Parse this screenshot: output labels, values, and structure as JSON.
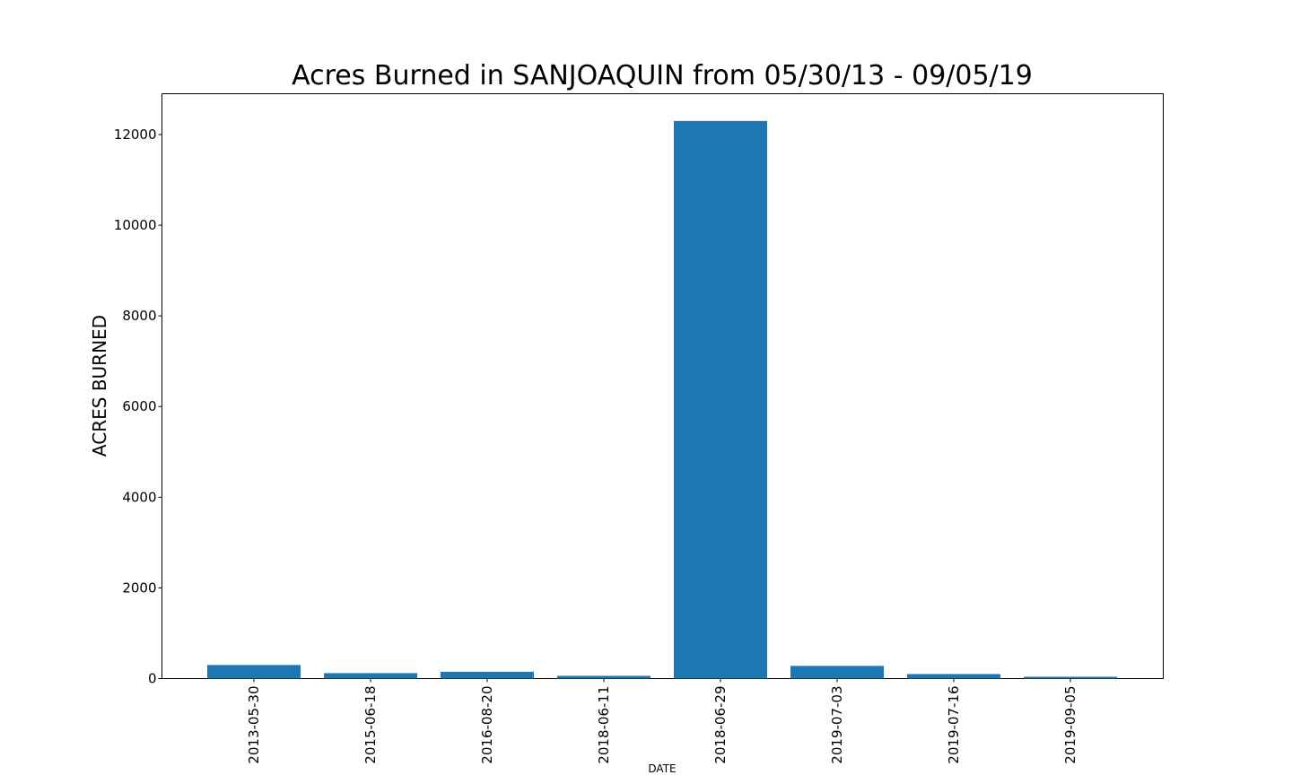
{
  "chart_data": {
    "type": "bar",
    "title": "Acres Burned in SANJOAQUIN from 05/30/13 - 09/05/19",
    "xlabel": "DATE",
    "ylabel": "ACRES BURNED",
    "categories": [
      "2013-05-30",
      "2015-06-18",
      "2016-08-20",
      "2018-06-11",
      "2018-06-29",
      "2019-07-03",
      "2019-07-16",
      "2019-09-05"
    ],
    "values": [
      300,
      120,
      150,
      60,
      12300,
      280,
      100,
      40
    ],
    "ylim": [
      0,
      12900
    ],
    "yticks": [
      0,
      2000,
      4000,
      6000,
      8000,
      10000,
      12000
    ],
    "grid": false,
    "bar_color": "#1f77b4"
  }
}
